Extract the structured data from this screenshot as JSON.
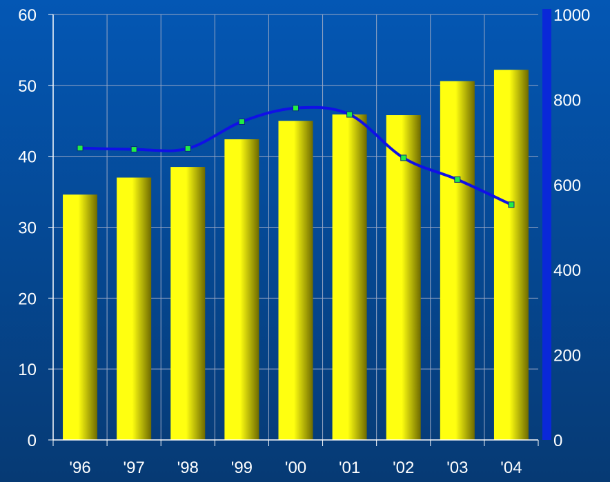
{
  "colors": {
    "background_top": "#0457b4",
    "background_bottom": "#063a74",
    "bar_light": "#ffff10",
    "bar_dark": "#6e6a00",
    "line": "#1010e6",
    "marker_fill": "#22ee44",
    "marker_stroke": "#0a2a80",
    "grid": "#9aa8c4",
    "axis": "#ffffff",
    "secondary_axis_band": "#0a28d8",
    "text": "#ffffff"
  },
  "chart_data": {
    "type": "bar",
    "categories": [
      "'96",
      "'97",
      "'98",
      "'99",
      "'00",
      "'01",
      "'02",
      "'03",
      "'04"
    ],
    "series": [
      {
        "type": "bar",
        "axis": "left",
        "values": [
          34.6,
          37.0,
          38.5,
          42.4,
          45.0,
          45.9,
          45.8,
          50.6,
          52.2
        ]
      },
      {
        "type": "line",
        "axis": "right",
        "smooth": true,
        "markers": true,
        "values": [
          686,
          683,
          685,
          748,
          780,
          765,
          663,
          612,
          553
        ]
      }
    ],
    "title": "",
    "xlabel": "",
    "ylabel": "",
    "ylim": [
      0,
      60
    ],
    "yticks": [
      "0",
      "10",
      "20",
      "30",
      "40",
      "50",
      "60"
    ],
    "y2lim": [
      0,
      1000
    ],
    "y2ticks": [
      "0",
      "200",
      "400",
      "600",
      "800",
      "1000"
    ],
    "grid": true,
    "legend": "none"
  }
}
